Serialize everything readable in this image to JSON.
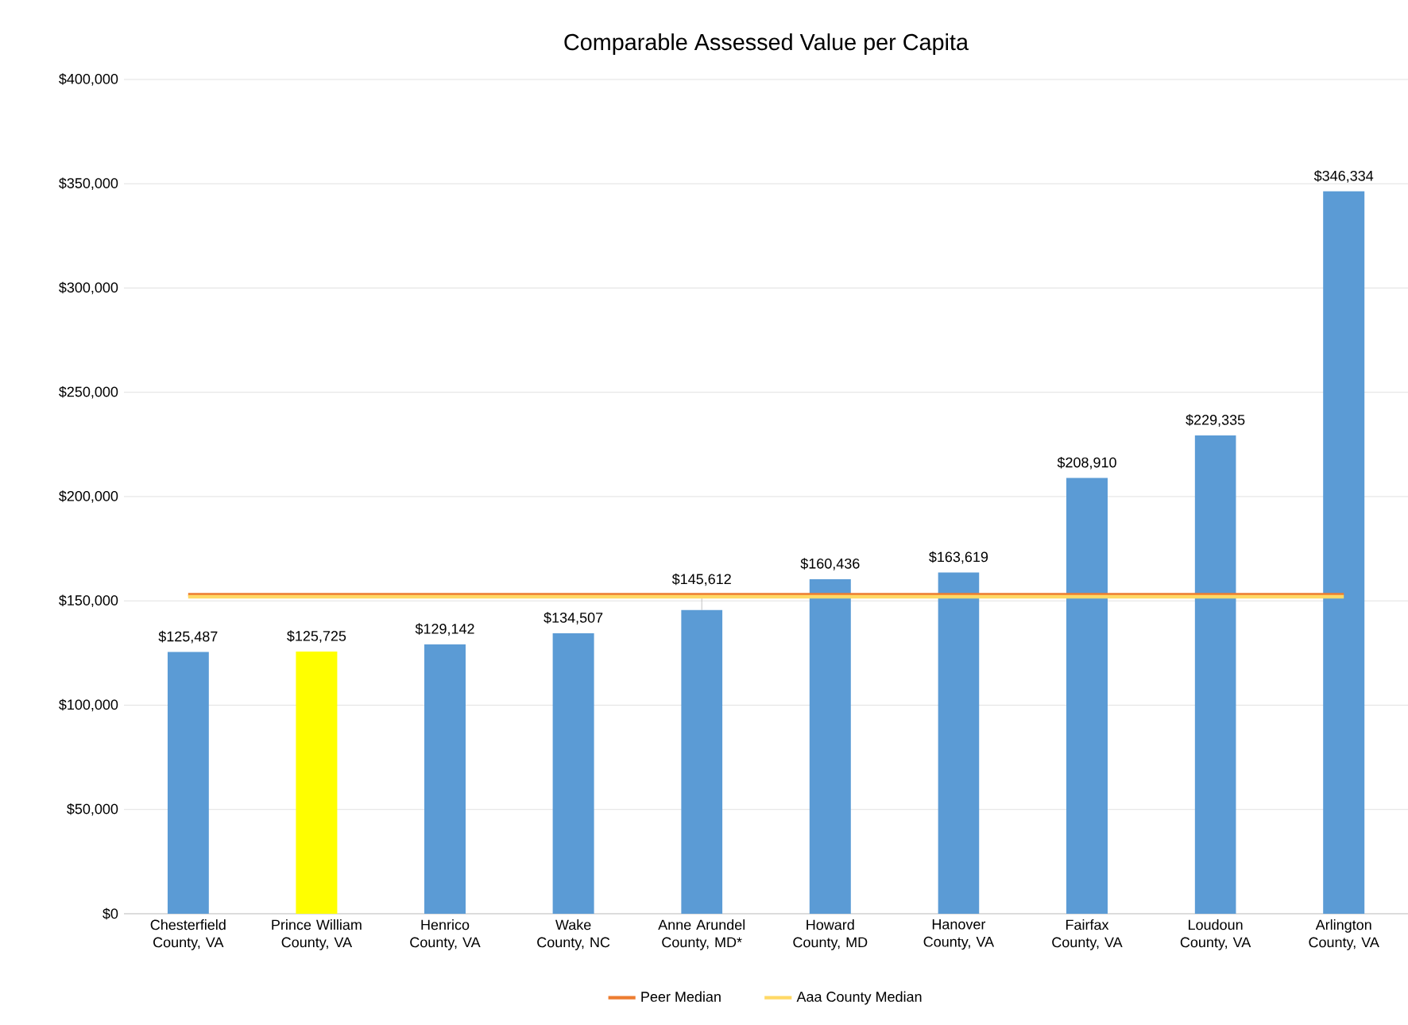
{
  "chart_data": {
    "type": "bar",
    "title": "Comparable Assessed Value per Capita",
    "categories": [
      "Chesterfield County, VA",
      "Prince William County, VA",
      "Henrico County, VA",
      "Wake County, NC",
      "Anne Arundel County, MD*",
      "Howard County, MD",
      "Hanover County, VA",
      "Fairfax County, VA",
      "Loudoun County, VA",
      "Arlington County, VA"
    ],
    "series": [
      {
        "colors": [
          "#5b9bd5",
          "#ffff00",
          "#5b9bd5",
          "#5b9bd5",
          "#5b9bd5",
          "#5b9bd5",
          "#5b9bd5",
          "#5b9bd5",
          "#5b9bd5",
          "#5b9bd5"
        ],
        "values": [
          125487,
          125725,
          129142,
          134507,
          145612,
          160436,
          163619,
          208910,
          229335,
          346334
        ],
        "value_labels": [
          "$125,487",
          "$125,725",
          "$129,142",
          "$134,507",
          "$145,612",
          "$160,436",
          "$163,619",
          "$208,910",
          "$229,335",
          "$346,334"
        ]
      },
      {
        "type": "line",
        "name": "Peer Median",
        "color": "#ed7d31",
        "values": [
          153000,
          153000,
          153000,
          153000,
          153000,
          153000,
          153000,
          153000,
          153000,
          153000
        ]
      },
      {
        "type": "line",
        "name": "Aaa County Median",
        "color": "#ffd966",
        "values": [
          152000,
          152000,
          152000,
          152000,
          152000,
          152000,
          152000,
          152000,
          152000,
          152000
        ]
      }
    ],
    "ylim": [
      0,
      400000
    ],
    "yticks": [
      {
        "value": 0,
        "label": "$0"
      },
      {
        "value": 50000,
        "label": "$50,000"
      },
      {
        "value": 100000,
        "label": "$100,000"
      },
      {
        "value": 150000,
        "label": "$150,000"
      },
      {
        "value": 200000,
        "label": "$200,000"
      },
      {
        "value": 250000,
        "label": "$250,000"
      },
      {
        "value": 300000,
        "label": "$300,000"
      },
      {
        "value": 350000,
        "label": "$350,000"
      },
      {
        "value": 400000,
        "label": "$400,000"
      }
    ],
    "grid": "y",
    "legend": "bottom"
  }
}
